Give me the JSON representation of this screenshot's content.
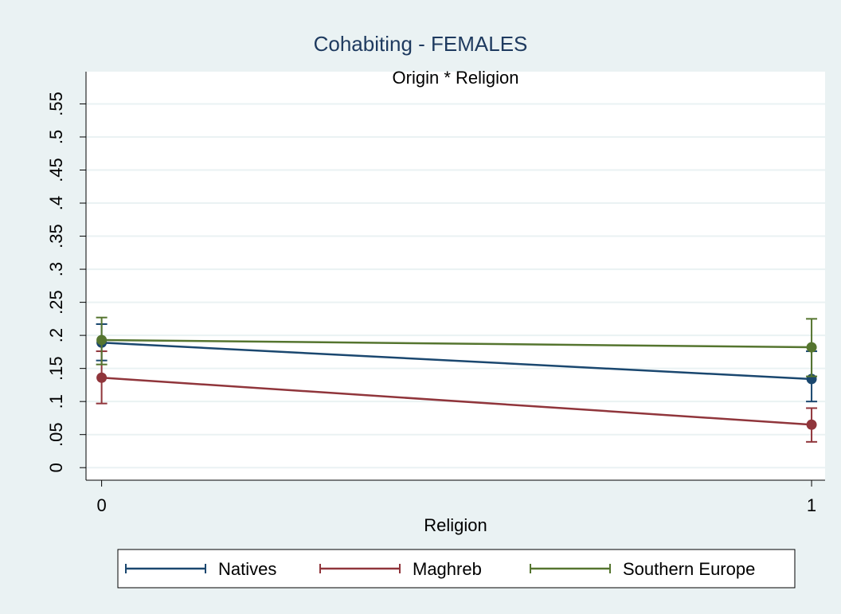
{
  "chart_data": {
    "type": "line-ci",
    "title": "Cohabiting - FEMALES",
    "subtitle": "Origin * Religion",
    "x_label": "Religion",
    "x": [
      0,
      1
    ],
    "xlim": [
      -0.022,
      1.019
    ],
    "xticks": [
      0,
      1
    ],
    "ylim": [
      -0.019,
      0.565
    ],
    "yticks": [
      0,
      {
        "value": 0.05,
        "label": ".05"
      },
      {
        "value": 0.1,
        "label": ".1"
      },
      {
        "value": 0.15,
        "label": ".15"
      },
      {
        "value": 0.2,
        "label": ".2"
      },
      {
        "value": 0.25,
        "label": ".25"
      },
      {
        "value": 0.3,
        "label": ".3"
      },
      {
        "value": 0.35,
        "label": ".35"
      },
      {
        "value": 0.4,
        "label": ".4"
      },
      {
        "value": 0.45,
        "label": ".45"
      },
      {
        "value": 0.5,
        "label": ".5"
      },
      {
        "value": 0.55,
        "label": ".55"
      }
    ],
    "grid": true,
    "legend_position": "bottom",
    "series": [
      {
        "name": "Natives",
        "color": "#1a476f",
        "values": [
          0.189,
          0.134
        ],
        "ci_lower": [
          0.162,
          0.1
        ],
        "ci_upper": [
          0.217,
          0.176
        ]
      },
      {
        "name": "Maghreb",
        "color": "#90353b",
        "values": [
          0.136,
          0.065
        ],
        "ci_lower": [
          0.097,
          0.039
        ],
        "ci_upper": [
          0.176,
          0.09
        ]
      },
      {
        "name": "Southern Europe",
        "color": "#55752f",
        "values": [
          0.193,
          0.182
        ],
        "ci_lower": [
          0.156,
          0.138
        ],
        "ci_upper": [
          0.227,
          0.225
        ]
      }
    ]
  }
}
